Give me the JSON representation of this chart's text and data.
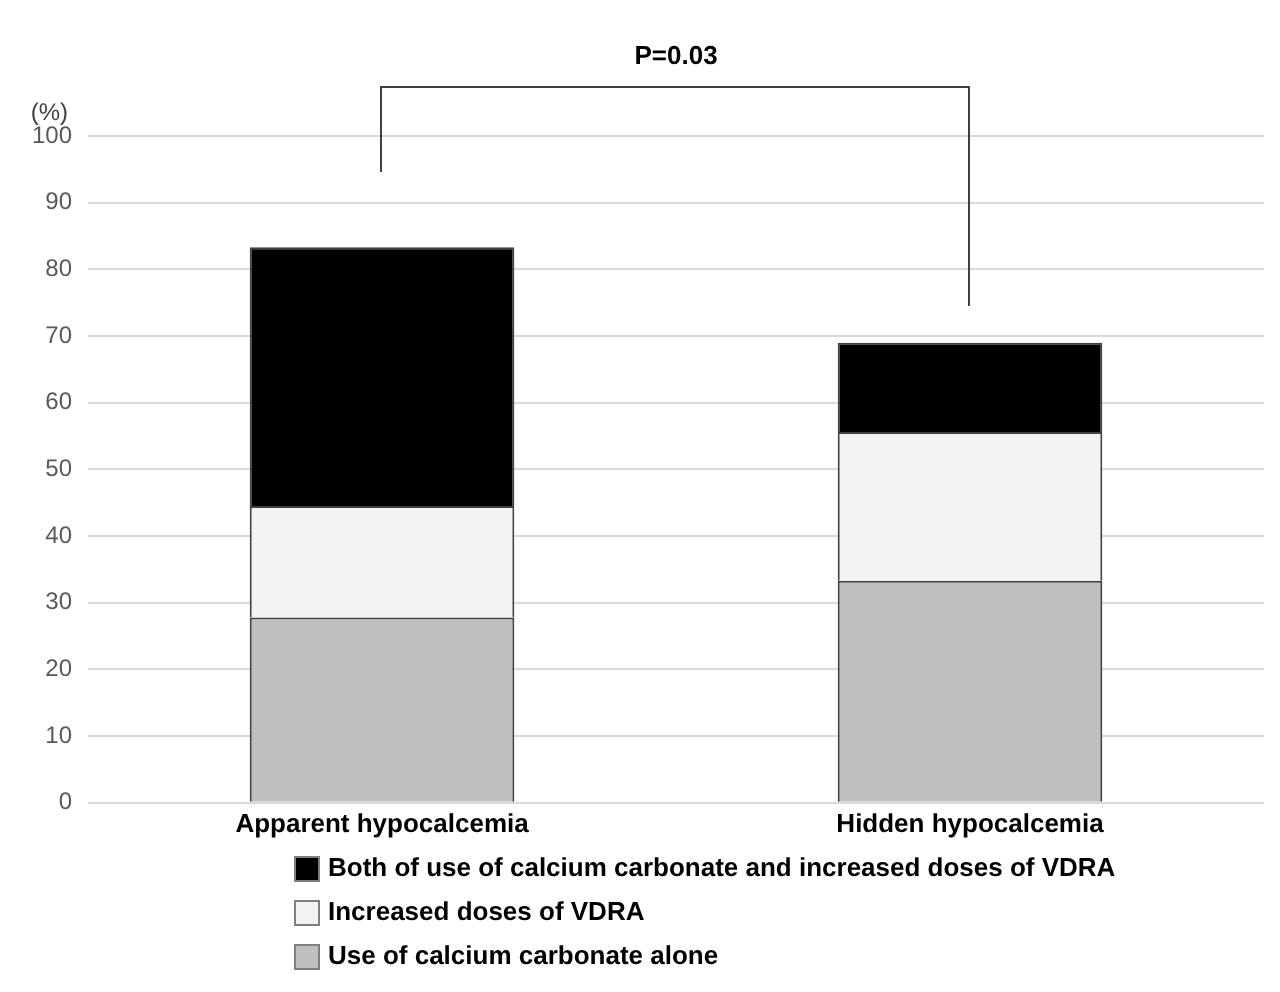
{
  "chart_data": {
    "type": "bar",
    "stacked": true,
    "ylabel": "(%)",
    "categories": [
      "Apparent hypocalcemia",
      "Hidden hypocalcemia"
    ],
    "series": [
      {
        "name": "Use of calcium carbonate alone",
        "color": "#bfbfbf",
        "values": [
          27.8,
          33.3
        ]
      },
      {
        "name": "Increased doses of VDRA",
        "color": "#f2f2f2",
        "values": [
          16.7,
          22.3
        ]
      },
      {
        "name": "Both of use of calcium carbonate and increased doses of VDRA",
        "color": "#000000",
        "values": [
          38.8,
          13.4
        ]
      }
    ],
    "ylim": [
      0,
      100
    ],
    "yticks": [
      0,
      10,
      20,
      30,
      40,
      50,
      60,
      70,
      80,
      90,
      100
    ],
    "grid": "y",
    "legend": "bottom",
    "annotations": [
      "P=0.03"
    ]
  }
}
